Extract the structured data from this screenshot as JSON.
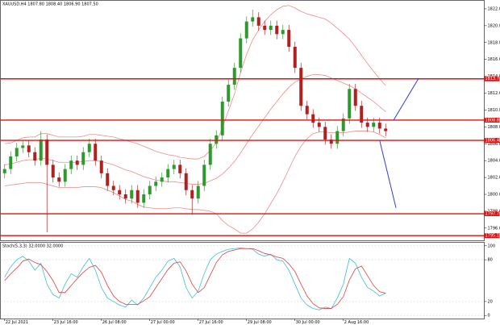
{
  "chart_data": [
    {
      "type": "candlestick",
      "title": "XAUUSD,H4 1807.80 1808.40 1806.90 1807.50",
      "categories": [
        "22 Jul 2021",
        null,
        null,
        null,
        null,
        null,
        null,
        null,
        "23 Jul 16:00",
        null,
        null,
        null,
        null,
        null,
        null,
        null,
        "26 Jul 08:00",
        null,
        null,
        null,
        null,
        null,
        null,
        null,
        "27 Jul 00:00",
        null,
        null,
        null,
        null,
        null,
        null,
        null,
        "27 Jul 16:00",
        null,
        null,
        null,
        null,
        null,
        null,
        null,
        "29 Jul 08:00",
        null,
        null,
        null,
        null,
        null,
        null,
        null,
        "30 Jul 00:00",
        null,
        null,
        null,
        null,
        null,
        null,
        null,
        "2 Aug 16:00",
        null,
        null,
        null,
        null,
        null,
        null,
        null
      ],
      "open": [
        1802.5,
        1803.0,
        1804.5,
        1805.5,
        1805.8,
        1805.0,
        1804.0,
        1806.5,
        1803.5,
        1802.0,
        1801.5,
        1803.0,
        1804.0,
        1803.5,
        1805.0,
        1806.0,
        1804.0,
        1802.5,
        1801.0,
        1800.5,
        1800.0,
        1799.5,
        1800.5,
        1799.0,
        1800.0,
        1801.0,
        1801.5,
        1802.0,
        1803.0,
        1803.5,
        1802.5,
        1800.5,
        1799.5,
        1801.0,
        1803.5,
        1806.0,
        1807.0,
        1811.0,
        1813.0,
        1815.0,
        1818.5,
        1820.5,
        1821.0,
        1820.0,
        1819.5,
        1820.0,
        1819.0,
        1819.5,
        1817.5,
        1815.0,
        1810.5,
        1809.5,
        1808.5,
        1808.0,
        1806.5,
        1806.0,
        1807.5,
        1809.0,
        1812.5,
        1810.5,
        1808.5,
        1808.0,
        1808.5,
        1807.8
      ],
      "high": [
        1803.6,
        1805.1,
        1806.1,
        1806.4,
        1806.4,
        1805.6,
        1807.5,
        1807.1,
        1804.1,
        1802.6,
        1803.6,
        1804.6,
        1804.6,
        1805.6,
        1806.6,
        1806.6,
        1804.6,
        1803.1,
        1801.6,
        1801.1,
        1800.6,
        1801.1,
        1801.1,
        1800.6,
        1801.6,
        1802.1,
        1802.6,
        1803.6,
        1804.1,
        1804.1,
        1803.1,
        1801.1,
        1801.6,
        1804.1,
        1806.6,
        1807.6,
        1811.6,
        1813.6,
        1815.6,
        1819.1,
        1821.1,
        1821.9,
        1821.6,
        1820.6,
        1820.6,
        1820.6,
        1820.1,
        1820.1,
        1818.1,
        1815.6,
        1811.1,
        1810.1,
        1809.1,
        1808.6,
        1807.1,
        1808.1,
        1809.6,
        1813.1,
        1813.1,
        1811.1,
        1809.1,
        1809.1,
        1809.1,
        1808.4
      ],
      "low": [
        1801.9,
        1802.4,
        1803.9,
        1804.9,
        1804.4,
        1803.4,
        1803.4,
        1795.5,
        1801.4,
        1800.9,
        1800.9,
        1802.4,
        1802.9,
        1802.9,
        1804.4,
        1803.4,
        1801.9,
        1800.4,
        1799.9,
        1799.4,
        1798.9,
        1798.9,
        1798.4,
        1798.4,
        1799.4,
        1800.4,
        1800.9,
        1801.4,
        1802.4,
        1801.9,
        1799.9,
        1797.6,
        1798.9,
        1800.4,
        1802.9,
        1805.4,
        1806.4,
        1810.4,
        1812.4,
        1814.4,
        1817.9,
        1819.9,
        1819.4,
        1818.9,
        1818.9,
        1818.4,
        1818.4,
        1816.9,
        1814.4,
        1809.9,
        1808.9,
        1807.9,
        1807.4,
        1805.9,
        1805.4,
        1805.4,
        1806.9,
        1808.4,
        1809.9,
        1807.9,
        1807.4,
        1807.4,
        1807.2,
        1806.9
      ],
      "close": [
        1803.0,
        1804.5,
        1805.5,
        1805.8,
        1805.0,
        1804.0,
        1806.5,
        1803.5,
        1802.0,
        1801.5,
        1803.0,
        1804.0,
        1803.5,
        1805.0,
        1806.0,
        1804.0,
        1802.5,
        1801.0,
        1800.5,
        1800.0,
        1799.5,
        1800.5,
        1799.0,
        1800.0,
        1801.0,
        1801.5,
        1802.0,
        1803.0,
        1803.5,
        1802.5,
        1800.5,
        1799.5,
        1801.0,
        1803.5,
        1806.0,
        1807.0,
        1811.0,
        1813.0,
        1815.0,
        1818.5,
        1820.5,
        1821.0,
        1820.0,
        1819.5,
        1820.0,
        1819.0,
        1819.5,
        1817.5,
        1815.0,
        1810.5,
        1809.5,
        1808.5,
        1808.0,
        1806.5,
        1806.0,
        1807.5,
        1809.0,
        1812.5,
        1810.5,
        1808.5,
        1808.0,
        1808.5,
        1807.8,
        1807.5
      ],
      "up_color": "#2e9a2e",
      "down_color": "#b02020",
      "series": [
        {
          "color": "#f08a8a",
          "values": [
            1806.0,
            1806.1,
            1806.4,
            1806.7,
            1806.8,
            1806.8,
            1807.2,
            1807.2,
            1807.0,
            1806.8,
            1806.8,
            1806.8,
            1806.8,
            1806.9,
            1807.1,
            1807.1,
            1807.0,
            1806.9,
            1806.8,
            1806.6,
            1806.4,
            1806.2,
            1806.0,
            1805.7,
            1805.4,
            1805.1,
            1804.9,
            1804.7,
            1804.6,
            1804.4,
            1804.3,
            1804.2,
            1804.2,
            1804.5,
            1805.2,
            1806.1,
            1807.9,
            1809.9,
            1811.9,
            1814.4,
            1816.6,
            1818.3,
            1819.5,
            1820.5,
            1821.3,
            1821.9,
            1822.3,
            1822.4,
            1822.1,
            1821.7,
            1821.4,
            1821.2,
            1821.0,
            1820.8,
            1820.3,
            1819.7,
            1819.1,
            1818.4,
            1817.5,
            1816.5,
            1815.5,
            1814.6,
            1813.7,
            1812.9
          ]
        },
        {
          "color": "#f08a8a",
          "values": [
            1803.5,
            1803.6,
            1803.8,
            1804.0,
            1804.1,
            1804.1,
            1804.3,
            1804.2,
            1804.0,
            1803.8,
            1803.8,
            1803.8,
            1803.8,
            1803.9,
            1804.0,
            1804.0,
            1803.9,
            1803.7,
            1803.5,
            1803.2,
            1802.9,
            1802.7,
            1802.4,
            1802.1,
            1801.9,
            1801.7,
            1801.6,
            1801.5,
            1801.5,
            1801.4,
            1801.3,
            1801.2,
            1801.2,
            1801.3,
            1801.6,
            1801.9,
            1802.4,
            1803.1,
            1803.9,
            1804.9,
            1806.0,
            1807.1,
            1808.1,
            1809.1,
            1810.1,
            1811.0,
            1811.9,
            1812.7,
            1813.3,
            1813.7,
            1814.0,
            1814.2,
            1814.2,
            1814.1,
            1813.8,
            1813.5,
            1813.2,
            1812.9,
            1812.5,
            1812.0,
            1811.5,
            1811.0,
            1810.4,
            1809.8
          ]
        },
        {
          "color": "#f08a8a",
          "values": [
            1801.0,
            1801.1,
            1801.2,
            1801.3,
            1801.4,
            1801.4,
            1801.4,
            1801.2,
            1801.0,
            1800.8,
            1800.8,
            1800.8,
            1800.8,
            1800.9,
            1800.9,
            1800.9,
            1800.8,
            1800.5,
            1800.2,
            1799.8,
            1799.4,
            1799.2,
            1798.8,
            1798.5,
            1798.4,
            1798.3,
            1798.3,
            1798.3,
            1798.4,
            1798.4,
            1798.3,
            1798.2,
            1798.2,
            1798.1,
            1798.0,
            1797.7,
            1796.9,
            1796.3,
            1795.9,
            1795.4,
            1795.4,
            1795.9,
            1796.7,
            1797.7,
            1798.9,
            1800.1,
            1801.5,
            1803.0,
            1804.5,
            1805.7,
            1806.6,
            1807.2,
            1807.4,
            1807.4,
            1807.3,
            1807.3,
            1807.3,
            1807.4,
            1807.5,
            1807.5,
            1807.5,
            1807.4,
            1807.1,
            1806.7
          ]
        }
      ],
      "hlines": [
        {
          "value": 1813.7,
          "label": "1813.70"
        },
        {
          "value": 1808.8,
          "label": "1808.80"
        },
        {
          "value": 1806.4,
          "label": "1806.40"
        },
        {
          "value": 1797.7,
          "label": "1797.70"
        },
        {
          "value": 1795.1,
          "label": "1795.10"
        }
      ],
      "hline_color": "#e01010",
      "trendlines": [
        {
          "x": [
            64.3,
            68.4
          ],
          "y": [
            1808.8,
            1813.7
          ]
        },
        {
          "x": [
            62,
            64.7
          ],
          "y": [
            1806.4,
            1798.4
          ]
        }
      ],
      "trend_color": "#2f3fd0",
      "xlim": [
        -0.7,
        79.3
      ],
      "ylim": [
        1794.5,
        1823.0
      ],
      "yticks": [
        {
          "value": 1796,
          "label": "1796.00"
        },
        {
          "value": 1798,
          "label": "1798.00"
        },
        {
          "value": 1800,
          "label": "1800.00"
        },
        {
          "value": 1802,
          "label": "1802.00"
        },
        {
          "value": 1804,
          "label": "1804.00"
        },
        {
          "value": 1806,
          "label": "1806.00"
        },
        {
          "value": 1808,
          "label": "1808.00"
        },
        {
          "value": 1810,
          "label": "1810.00"
        },
        {
          "value": 1812,
          "label": "1812.00"
        },
        {
          "value": 1814,
          "label": "1814.00"
        },
        {
          "value": 1816,
          "label": "1816.00"
        },
        {
          "value": 1818,
          "label": "1818.00"
        },
        {
          "value": 1820,
          "label": "1820.00"
        },
        {
          "value": 1822,
          "label": "1822.00"
        }
      ]
    },
    {
      "type": "line",
      "title": "Stoch(5,3,3) 32.0000 32.0000",
      "series": [
        {
          "color": "#3cc0d0",
          "values": [
            55,
            70,
            80,
            85,
            78,
            65,
            75,
            45,
            30,
            25,
            45,
            60,
            55,
            70,
            82,
            65,
            40,
            25,
            20,
            15,
            12,
            22,
            15,
            25,
            40,
            55,
            65,
            78,
            82,
            70,
            40,
            25,
            35,
            60,
            80,
            88,
            92,
            95,
            96,
            97,
            96,
            95,
            88,
            85,
            88,
            80,
            78,
            65,
            45,
            25,
            15,
            10,
            8,
            12,
            10,
            25,
            45,
            82,
            75,
            55,
            40,
            35,
            28,
            32
          ]
        },
        {
          "color": "#e04040",
          "values": [
            50,
            60,
            68,
            78,
            81,
            76,
            73,
            63,
            50,
            33,
            33,
            43,
            53,
            62,
            69,
            72,
            62,
            43,
            28,
            20,
            16,
            16,
            16,
            21,
            27,
            40,
            53,
            66,
            75,
            77,
            64,
            45,
            33,
            40,
            58,
            76,
            87,
            92,
            94,
            96,
            96,
            96,
            93,
            89,
            87,
            84,
            82,
            74,
            63,
            45,
            28,
            17,
            11,
            10,
            10,
            16,
            27,
            51,
            67,
            71,
            57,
            43,
            34,
            32
          ]
        }
      ],
      "ylim": [
        -5,
        105
      ],
      "yticks": [
        0,
        20,
        80,
        100
      ]
    }
  ]
}
